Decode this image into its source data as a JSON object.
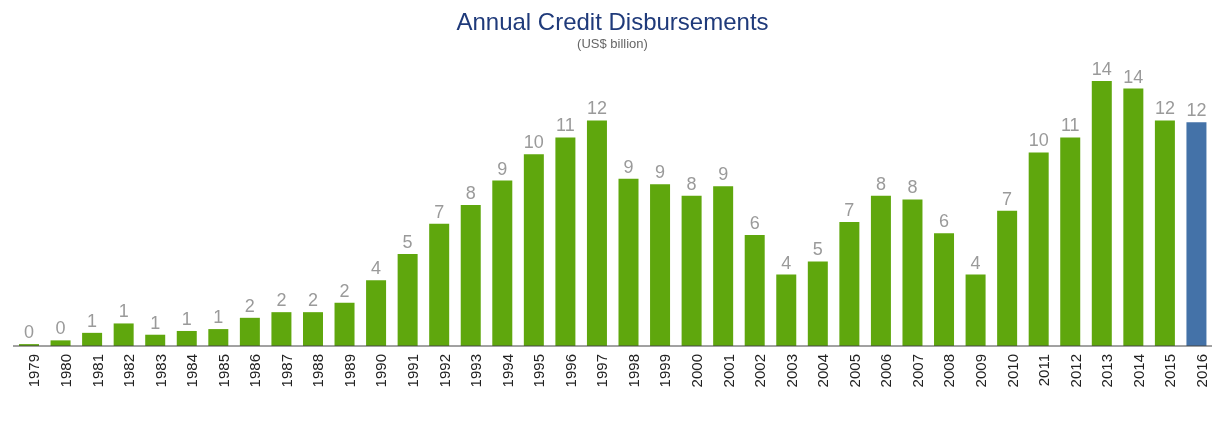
{
  "chart_data": {
    "type": "bar",
    "title": "Annual Credit Disbursements",
    "subtitle": "(US$ billion)",
    "categories": [
      "1979",
      "1980",
      "1981",
      "1982",
      "1983",
      "1984",
      "1985",
      "1986",
      "1987",
      "1988",
      "1989",
      "1990",
      "1991",
      "1992",
      "1993",
      "1994",
      "1995",
      "1996",
      "1997",
      "1998",
      "1999",
      "2000",
      "2001",
      "2002",
      "2003",
      "2004",
      "2005",
      "2006",
      "2007",
      "2008",
      "2009",
      "2010",
      "2011",
      "2012",
      "2013",
      "2014",
      "2015",
      "2016"
    ],
    "values": [
      0.1,
      0.3,
      0.7,
      1.2,
      0.6,
      0.8,
      0.9,
      1.5,
      1.8,
      1.8,
      2.3,
      3.5,
      4.9,
      6.5,
      7.5,
      8.8,
      10.2,
      11.1,
      12.0,
      8.9,
      8.6,
      8.0,
      8.5,
      5.9,
      3.8,
      4.5,
      6.6,
      8.0,
      7.8,
      6.0,
      3.8,
      7.2,
      10.3,
      11.1,
      14.1,
      13.7,
      12.0,
      11.9
    ],
    "value_labels": [
      "0",
      "0",
      "1",
      "1",
      "1",
      "1",
      "1",
      "2",
      "2",
      "2",
      "2",
      "4",
      "5",
      "7",
      "8",
      "9",
      "10",
      "11",
      "12",
      "9",
      "9",
      "8",
      "9",
      "6",
      "4",
      "5",
      "7",
      "8",
      "8",
      "6",
      "4",
      "7",
      "10",
      "11",
      "14",
      "14",
      "12",
      "12"
    ],
    "colors": [
      "#5fa70d",
      "#5fa70d",
      "#5fa70d",
      "#5fa70d",
      "#5fa70d",
      "#5fa70d",
      "#5fa70d",
      "#5fa70d",
      "#5fa70d",
      "#5fa70d",
      "#5fa70d",
      "#5fa70d",
      "#5fa70d",
      "#5fa70d",
      "#5fa70d",
      "#5fa70d",
      "#5fa70d",
      "#5fa70d",
      "#5fa70d",
      "#5fa70d",
      "#5fa70d",
      "#5fa70d",
      "#5fa70d",
      "#5fa70d",
      "#5fa70d",
      "#5fa70d",
      "#5fa70d",
      "#5fa70d",
      "#5fa70d",
      "#5fa70d",
      "#5fa70d",
      "#5fa70d",
      "#5fa70d",
      "#5fa70d",
      "#5fa70d",
      "#5fa70d",
      "#5fa70d",
      "#4472a8"
    ],
    "grid": false,
    "legend": false
  }
}
